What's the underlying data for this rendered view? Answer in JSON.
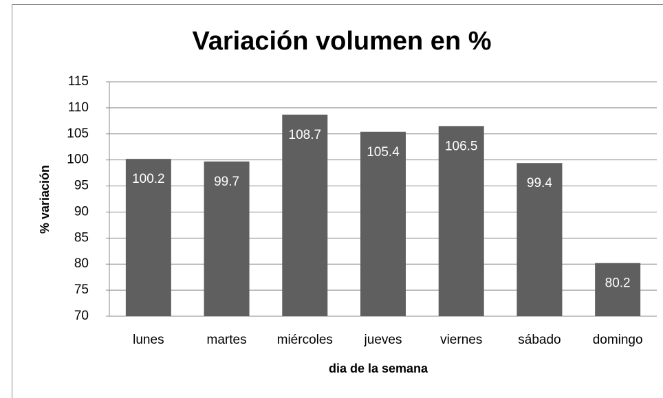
{
  "chart_data": {
    "type": "bar",
    "title": "Variación volumen en %",
    "x_label": "dia de la semana",
    "y_label": "% variación",
    "categories": [
      "lunes",
      "martes",
      "miércoles",
      "jueves",
      "viernes",
      "sábado",
      "domingo"
    ],
    "values": [
      100.2,
      99.7,
      108.7,
      105.4,
      106.5,
      99.4,
      80.2
    ],
    "color": "#5f5f5f",
    "ylim": [
      70,
      115
    ],
    "yticks": [
      70,
      75,
      80,
      85,
      90,
      95,
      100,
      105,
      110,
      115
    ],
    "grid": true
  }
}
